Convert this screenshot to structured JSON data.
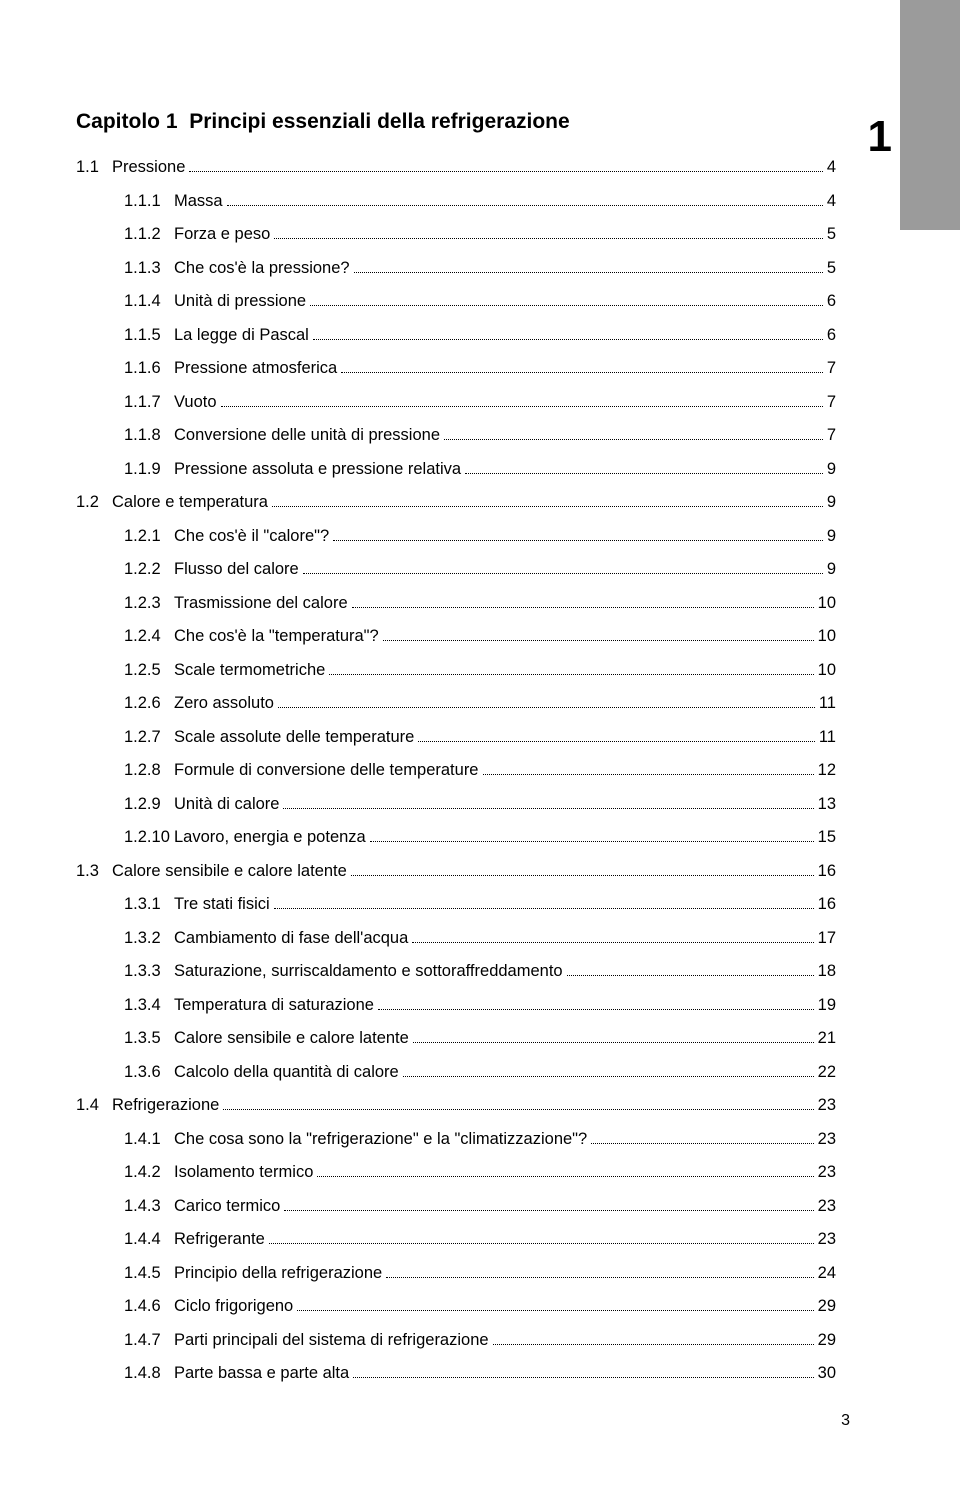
{
  "colors": {
    "sidebar_bg": "#9b9b9b",
    "page_bg": "#ffffff",
    "text": "#000000",
    "dots": "#000000"
  },
  "typography": {
    "title_fontsize": 21,
    "body_fontsize": 16.5,
    "sidebar_number_fontsize": 44,
    "font_family": "Arial"
  },
  "sidebar": {
    "chapter_number": "1"
  },
  "chapter": {
    "prefix": "Capitolo 1",
    "title": "Principi essenziali della refrigerazione"
  },
  "sections": [
    {
      "num": "1.1",
      "title": "Pressione",
      "page": "4",
      "subs": [
        {
          "num": "1.1.1",
          "title": "Massa",
          "page": "4"
        },
        {
          "num": "1.1.2",
          "title": "Forza e peso",
          "page": "5"
        },
        {
          "num": "1.1.3",
          "title": "Che cos'è la pressione?",
          "page": "5"
        },
        {
          "num": "1.1.4",
          "title": "Unità di pressione",
          "page": "6"
        },
        {
          "num": "1.1.5",
          "title": "La legge di Pascal",
          "page": "6"
        },
        {
          "num": "1.1.6",
          "title": "Pressione atmosferica",
          "page": "7"
        },
        {
          "num": "1.1.7",
          "title": "Vuoto",
          "page": "7"
        },
        {
          "num": "1.1.8",
          "title": "Conversione delle unità di pressione",
          "page": "7"
        },
        {
          "num": "1.1.9",
          "title": "Pressione assoluta e pressione relativa",
          "page": "9"
        }
      ]
    },
    {
      "num": "1.2",
      "title": "Calore e temperatura",
      "page": "9",
      "subs": [
        {
          "num": "1.2.1",
          "title": "Che cos'è il \"calore\"?",
          "page": "9"
        },
        {
          "num": "1.2.2",
          "title": "Flusso del calore",
          "page": "9"
        },
        {
          "num": "1.2.3",
          "title": "Trasmissione del calore",
          "page": "10"
        },
        {
          "num": "1.2.4",
          "title": "Che cos'è la \"temperatura\"?",
          "page": "10"
        },
        {
          "num": "1.2.5",
          "title": "Scale termometriche",
          "page": "10"
        },
        {
          "num": "1.2.6",
          "title": "Zero assoluto",
          "page": "11"
        },
        {
          "num": "1.2.7",
          "title": "Scale assolute delle temperature",
          "page": "11"
        },
        {
          "num": "1.2.8",
          "title": "Formule di conversione delle temperature",
          "page": "12"
        },
        {
          "num": "1.2.9",
          "title": "Unità di calore",
          "page": "13"
        },
        {
          "num": "1.2.10",
          "title": "Lavoro, energia e potenza",
          "page": "15"
        }
      ]
    },
    {
      "num": "1.3",
      "title": "Calore sensibile e calore latente",
      "page": "16",
      "subs": [
        {
          "num": "1.3.1",
          "title": "Tre stati fisici",
          "page": "16"
        },
        {
          "num": "1.3.2",
          "title": "Cambiamento di fase dell'acqua",
          "page": "17"
        },
        {
          "num": "1.3.3",
          "title": "Saturazione, surriscaldamento e sottoraffreddamento",
          "page": "18"
        },
        {
          "num": "1.3.4",
          "title": "Temperatura di saturazione",
          "page": "19"
        },
        {
          "num": "1.3.5",
          "title": "Calore sensibile e calore latente",
          "page": "21"
        },
        {
          "num": "1.3.6",
          "title": "Calcolo della quantità di calore",
          "page": "22"
        }
      ]
    },
    {
      "num": "1.4",
      "title": "Refrigerazione",
      "page": "23",
      "subs": [
        {
          "num": "1.4.1",
          "title": "Che cosa sono la \"refrigerazione\" e la \"climatizzazione\"?",
          "page": "23"
        },
        {
          "num": "1.4.2",
          "title": "Isolamento termico",
          "page": "23"
        },
        {
          "num": "1.4.3",
          "title": "Carico termico",
          "page": "23"
        },
        {
          "num": "1.4.4",
          "title": "Refrigerante",
          "page": "23"
        },
        {
          "num": "1.4.5",
          "title": "Principio della refrigerazione",
          "page": "24"
        },
        {
          "num": "1.4.6",
          "title": "Ciclo frigorigeno",
          "page": "29"
        },
        {
          "num": "1.4.7",
          "title": "Parti principali del sistema di refrigerazione",
          "page": "29"
        },
        {
          "num": "1.4.8",
          "title": "Parte bassa e parte alta",
          "page": "30"
        }
      ]
    }
  ],
  "footer": {
    "page_number": "3"
  }
}
